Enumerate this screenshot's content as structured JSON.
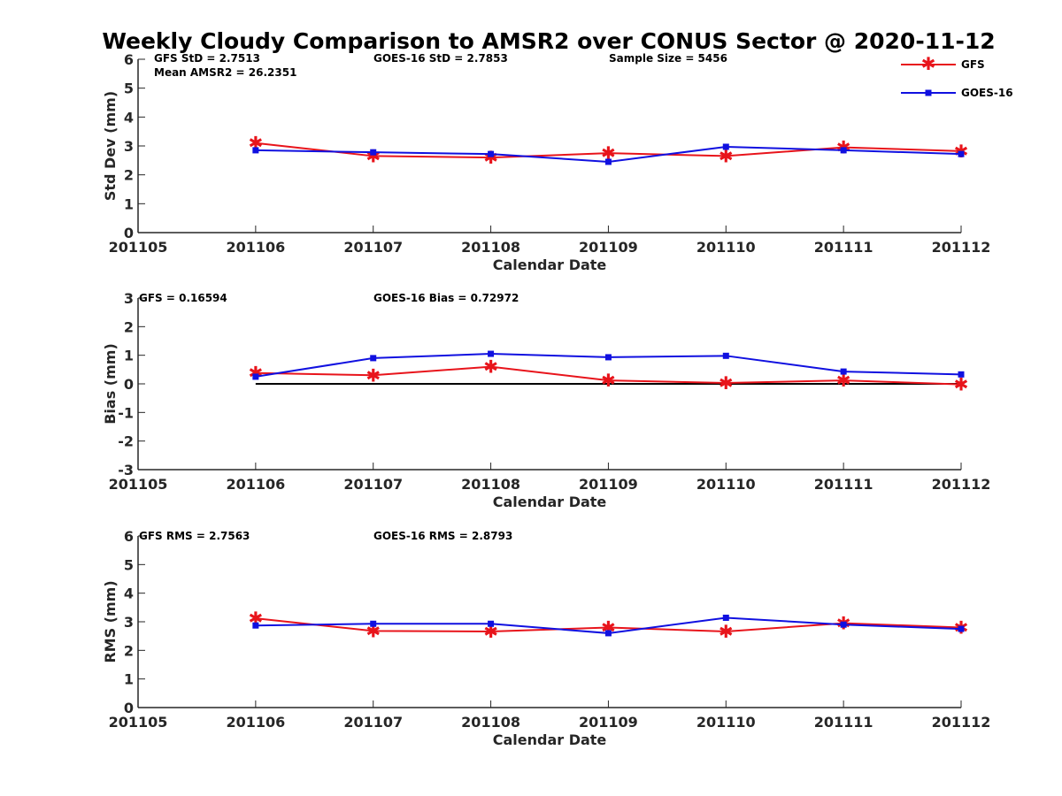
{
  "title": "Weekly Cloudy Comparison to AMSR2 over CONUS Sector @ 2020-11-12",
  "legend": {
    "placement": "top-right",
    "entries": [
      {
        "name": "GFS",
        "color": "#e8141b",
        "marker": "asterisk"
      },
      {
        "name": "GOES-16",
        "color": "#1010e0",
        "marker": "square"
      }
    ]
  },
  "colors": {
    "gfs": "#e8141b",
    "goes": "#1010e0",
    "zero_line": "#000000"
  },
  "chart_data": [
    {
      "type": "line",
      "xlabel": "Calendar Date",
      "ylabel": "Std Dev (mm)",
      "x_ticks": [
        "201105",
        "201106",
        "201107",
        "201108",
        "201109",
        "201110",
        "201111",
        "201112"
      ],
      "y_ticks": [
        "0",
        "1",
        "2",
        "3",
        "4",
        "5",
        "6"
      ],
      "ylim": [
        0,
        6
      ],
      "grid": false,
      "annotations": [
        "GFS StD = 2.7513",
        "Mean AMSR2 = 26.2351",
        "GOES-16 StD = 2.7853",
        "Sample Size = 5456"
      ],
      "categories": [
        "201106",
        "201107",
        "201108",
        "201109",
        "201110",
        "201111",
        "201112"
      ],
      "series": [
        {
          "name": "GFS",
          "values": [
            3.1,
            2.65,
            2.6,
            2.75,
            2.65,
            2.95,
            2.82
          ]
        },
        {
          "name": "GOES-16",
          "values": [
            2.85,
            2.78,
            2.72,
            2.45,
            2.97,
            2.85,
            2.72
          ]
        }
      ]
    },
    {
      "type": "line",
      "xlabel": "Calendar Date",
      "ylabel": "Bias (mm)",
      "x_ticks": [
        "201105",
        "201106",
        "201107",
        "201108",
        "201109",
        "201110",
        "201111",
        "201112"
      ],
      "y_ticks": [
        "-3",
        "-2",
        "-1",
        "0",
        "1",
        "2",
        "3"
      ],
      "ylim": [
        -3,
        3
      ],
      "grid": false,
      "reference_line": 0,
      "annotations": [
        "GFS = 0.16594",
        "GOES-16 Bias  = 0.72972"
      ],
      "categories": [
        "201106",
        "201107",
        "201108",
        "201109",
        "201110",
        "201111",
        "201112"
      ],
      "series": [
        {
          "name": "GFS",
          "values": [
            0.38,
            0.3,
            0.6,
            0.12,
            0.03,
            0.12,
            -0.02
          ]
        },
        {
          "name": "GOES-16",
          "values": [
            0.25,
            0.9,
            1.05,
            0.93,
            0.98,
            0.43,
            0.33
          ]
        }
      ]
    },
    {
      "type": "line",
      "xlabel": "Calendar Date",
      "ylabel": "RMS (mm)",
      "x_ticks": [
        "201105",
        "201106",
        "201107",
        "201108",
        "201109",
        "201110",
        "201111",
        "201112"
      ],
      "y_ticks": [
        "0",
        "1",
        "2",
        "3",
        "4",
        "5",
        "6"
      ],
      "ylim": [
        0,
        6
      ],
      "grid": false,
      "annotations": [
        "GFS RMS = 2.7563",
        "GOES-16 RMS = 2.8793"
      ],
      "categories": [
        "201106",
        "201107",
        "201108",
        "201109",
        "201110",
        "201111",
        "201112"
      ],
      "series": [
        {
          "name": "GFS",
          "values": [
            3.12,
            2.68,
            2.66,
            2.8,
            2.66,
            2.95,
            2.8
          ]
        },
        {
          "name": "GOES-16",
          "values": [
            2.87,
            2.93,
            2.93,
            2.6,
            3.14,
            2.9,
            2.75
          ]
        }
      ]
    }
  ]
}
